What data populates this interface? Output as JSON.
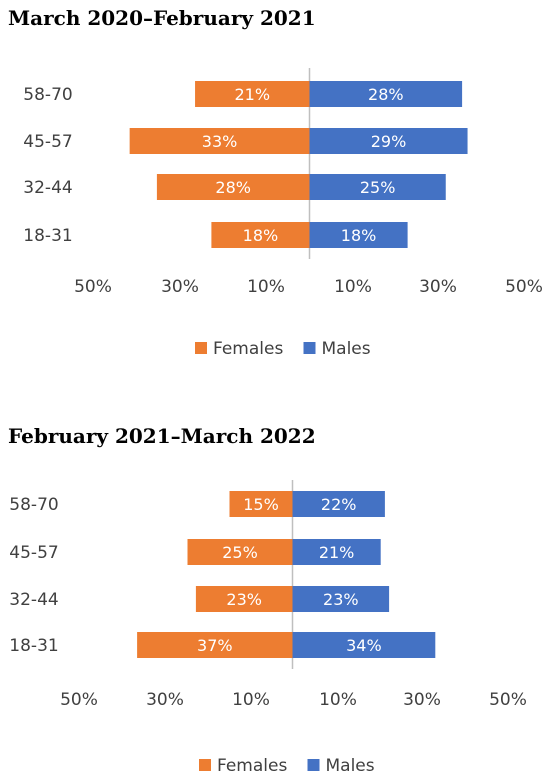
{
  "chart_data": [
    {
      "type": "bar",
      "orientation": "horizontal-diverging",
      "title": "March 2020–February 2021",
      "categories": [
        "58-70",
        "45-57",
        "32-44",
        "18-31"
      ],
      "series": [
        {
          "name": "Females",
          "values": [
            21,
            33,
            28,
            18
          ],
          "labels": [
            "21%",
            "33%",
            "28%",
            "18%"
          ],
          "color": "#ED7D31",
          "side": "left"
        },
        {
          "name": "Males",
          "values": [
            28,
            29,
            25,
            18
          ],
          "labels": [
            "28%",
            "29%",
            "25%",
            "18%"
          ],
          "color": "#4472C4",
          "side": "right"
        }
      ],
      "tick_labels": [
        "50%",
        "30%",
        "10%",
        "10%",
        "30%",
        "50%"
      ],
      "legend": "bottom",
      "grid": false
    },
    {
      "type": "bar",
      "orientation": "horizontal-diverging",
      "title": "February 2021–March 2022",
      "categories": [
        "58-70",
        "45-57",
        "32-44",
        "18-31"
      ],
      "series": [
        {
          "name": "Females",
          "values": [
            15,
            25,
            23,
            37
          ],
          "labels": [
            "15%",
            "25%",
            "23%",
            "37%"
          ],
          "color": "#ED7D31",
          "side": "left"
        },
        {
          "name": "Males",
          "values": [
            22,
            21,
            23,
            34
          ],
          "labels": [
            "22%",
            "21%",
            "23%",
            "34%"
          ],
          "color": "#4472C4",
          "side": "right"
        }
      ],
      "tick_labels": [
        "50%",
        "30%",
        "10%",
        "10%",
        "30%",
        "50%"
      ],
      "legend": "bottom",
      "grid": false
    }
  ],
  "axis_line_color": "#BFBFBF"
}
